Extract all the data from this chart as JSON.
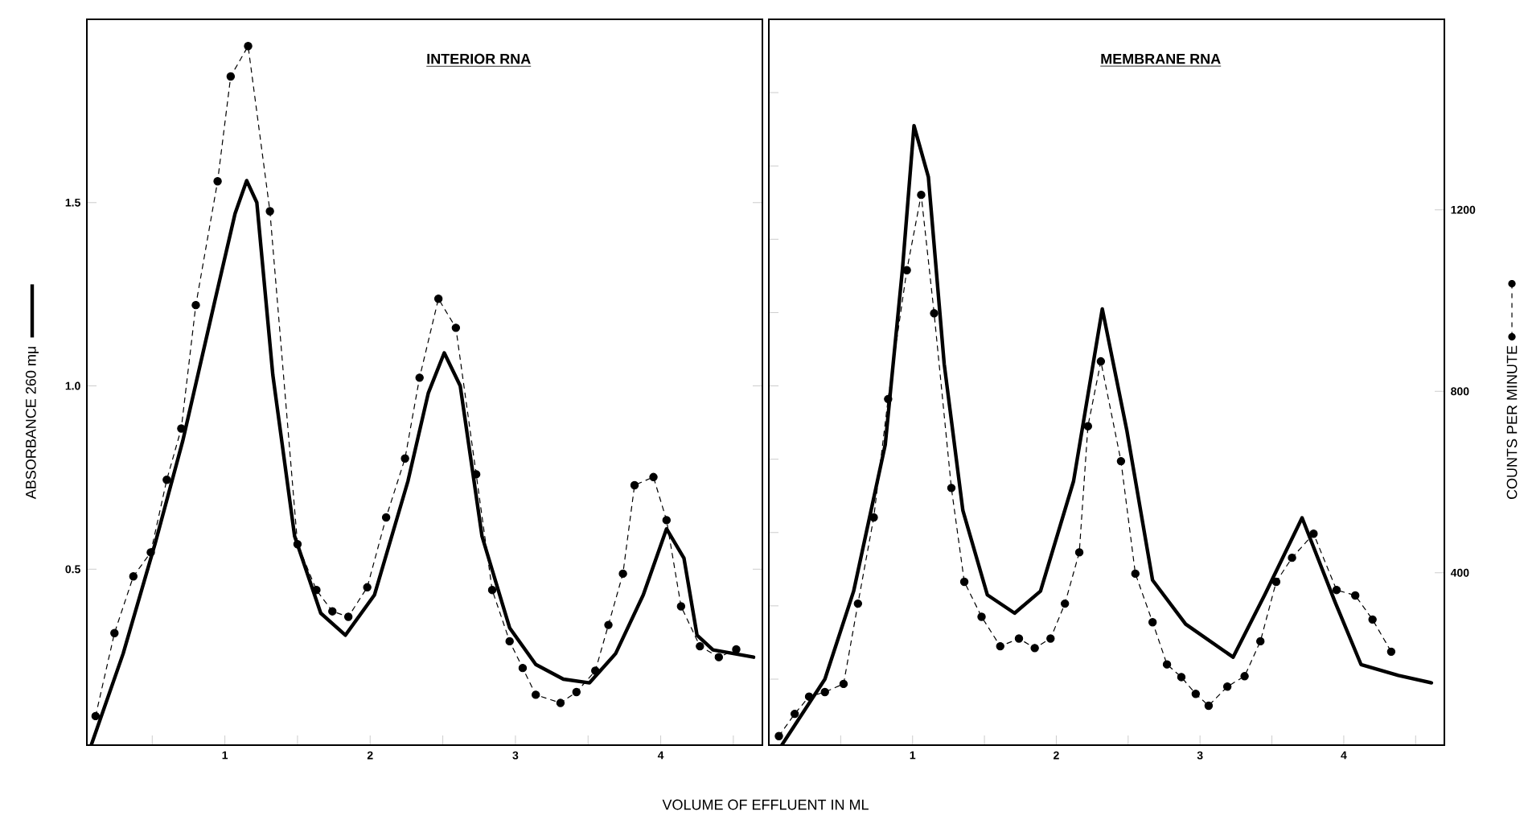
{
  "chart_data": [
    {
      "type": "line",
      "title": "INTERIOR RNA",
      "xlabel": "VOLUME OF EFFLUENT IN ML",
      "ylabel": "ABSORBANCE 260 mμ",
      "xlim": [
        0.05,
        4.7
      ],
      "xticks": [
        {
          "value": 0.5,
          "label": null
        },
        1,
        {
          "value": 1.5,
          "label": null
        },
        2,
        {
          "value": 2.5,
          "label": null
        },
        3,
        {
          "value": 3.5,
          "label": null
        },
        4,
        {
          "value": 4.5,
          "label": null
        }
      ],
      "ylim": [
        0.02,
        2.0
      ],
      "yticks": [
        0.5,
        {
          "value": 1.0,
          "label": "1.0"
        },
        1.5
      ],
      "y2lim": [
        20,
        1620
      ],
      "series": [
        {
          "axis": "y",
          "color": "#000000",
          "marker": "none",
          "line_style": "solid",
          "x": [
            0.08,
            0.3,
            0.52,
            0.71,
            0.93,
            1.07,
            1.15,
            1.22,
            1.33,
            1.48,
            1.66,
            1.83,
            2.03,
            2.26,
            2.4,
            2.51,
            2.62,
            2.77,
            2.96,
            3.14,
            3.33,
            3.51,
            3.69,
            3.88,
            4.04,
            4.16,
            4.25,
            4.36,
            4.64
          ],
          "values": [
            0.02,
            0.27,
            0.57,
            0.85,
            1.23,
            1.47,
            1.56,
            1.5,
            1.03,
            0.59,
            0.38,
            0.32,
            0.43,
            0.74,
            0.98,
            1.09,
            1.0,
            0.59,
            0.34,
            0.24,
            0.2,
            0.19,
            0.27,
            0.43,
            0.61,
            0.53,
            0.32,
            0.28,
            0.26
          ]
        },
        {
          "axis": "y2",
          "color": "#000000",
          "marker": "circle",
          "line_style": "dashed",
          "x": [
            0.11,
            0.24,
            0.37,
            0.49,
            0.6,
            0.7,
            0.8,
            0.95,
            1.04,
            1.16,
            1.31,
            1.5,
            1.63,
            1.74,
            1.85,
            1.98,
            2.11,
            2.24,
            2.34,
            2.47,
            2.59,
            2.73,
            2.84,
            2.96,
            3.05,
            3.14,
            3.31,
            3.42,
            3.55,
            3.64,
            3.74,
            3.82,
            3.95,
            4.04,
            4.14,
            4.27,
            4.4,
            4.52
          ],
          "values": [
            84,
            267,
            392,
            445,
            605,
            718,
            990,
            1263,
            1494,
            1561,
            1197,
            463,
            362,
            315,
            303,
            368,
            522,
            652,
            830,
            1004,
            940,
            617,
            362,
            249,
            190,
            131,
            113,
            137,
            184,
            285,
            398,
            593,
            611,
            516,
            326,
            238,
            214,
            231
          ]
        }
      ]
    },
    {
      "type": "line",
      "title": "MEMBRANE RNA",
      "y2label": "COUNTS PER MINUTE",
      "xlim": [
        0.0,
        4.7
      ],
      "xticks": [
        {
          "value": 0.5,
          "label": null
        },
        1,
        {
          "value": 1.5,
          "label": null
        },
        2,
        {
          "value": 2.5,
          "label": null
        },
        3,
        {
          "value": 3.5,
          "label": null
        },
        4,
        {
          "value": 4.5,
          "label": null
        }
      ],
      "ylim": [
        0.02,
        2.0
      ],
      "y2lim": [
        20,
        1620
      ],
      "y2ticks": [
        400,
        800,
        1200
      ],
      "series": [
        {
          "axis": "y",
          "color": "#000000",
          "marker": "none",
          "line_style": "solid",
          "x": [
            0.09,
            0.39,
            0.59,
            0.81,
            0.93,
            1.01,
            1.11,
            1.22,
            1.35,
            1.52,
            1.71,
            1.89,
            2.12,
            2.32,
            2.49,
            2.67,
            2.9,
            3.23,
            3.45,
            3.71,
            3.94,
            4.12,
            4.38,
            4.61
          ],
          "values": [
            0.02,
            0.2,
            0.44,
            0.84,
            1.32,
            1.71,
            1.57,
            1.06,
            0.66,
            0.43,
            0.38,
            0.44,
            0.74,
            1.21,
            0.88,
            0.47,
            0.35,
            0.26,
            0.43,
            0.64,
            0.41,
            0.24,
            0.21,
            0.19
          ]
        },
        {
          "axis": "y2",
          "color": "#000000",
          "marker": "circle",
          "line_style": "dashed",
          "x": [
            0.07,
            0.18,
            0.28,
            0.39,
            0.52,
            0.62,
            0.73,
            0.83,
            0.96,
            1.06,
            1.15,
            1.27,
            1.36,
            1.48,
            1.61,
            1.74,
            1.85,
            1.96,
            2.06,
            2.16,
            2.22,
            2.31,
            2.45,
            2.55,
            2.67,
            2.77,
            2.87,
            2.97,
            3.06,
            3.19,
            3.31,
            3.42,
            3.53,
            3.64,
            3.79,
            3.95,
            4.08,
            4.2,
            4.33
          ],
          "values": [
            40,
            89,
            127,
            137,
            155,
            332,
            522,
            783,
            1067,
            1233,
            972,
            587,
            380,
            303,
            238,
            255,
            234,
            255,
            332,
            445,
            723,
            866,
            646,
            398,
            291,
            198,
            170,
            133,
            107,
            149,
            172,
            249,
            380,
            433,
            486,
            362,
            350,
            297,
            226
          ]
        }
      ]
    }
  ]
}
